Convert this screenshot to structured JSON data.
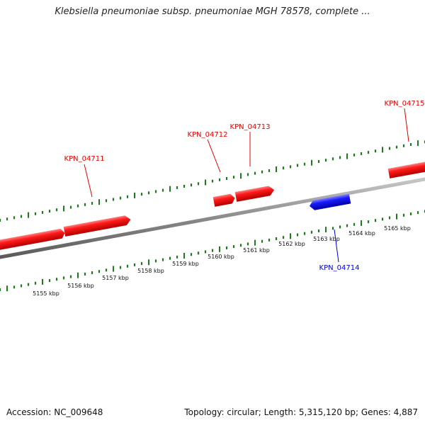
{
  "header": {
    "title": "Klebsiella pneumoniae subsp. pneumoniae MGH 78578, complete ..."
  },
  "footer": {
    "accession": "Accession: NC_009648",
    "topology": "Topology: circular; Length: 5,315,120 bp; Genes: 4,887"
  },
  "colors": {
    "forward_gene": "#ff1a1a",
    "reverse_gene": "#1a1aff",
    "backbone": "#8a8a8a",
    "ticks": "#1e7a1e",
    "background": "#ffffff"
  },
  "map": {
    "ruler_labels": [
      "5155 kbp",
      "5156 kbp",
      "5157 kbp",
      "5158 kbp",
      "5159 kbp",
      "5160 kbp",
      "5161 kbp",
      "5162 kbp",
      "5163 kbp",
      "5164 kbp",
      "5165 kbp"
    ],
    "genes": [
      {
        "name": "KPN_04711",
        "strand": "forward"
      },
      {
        "name": "KPN_04712",
        "strand": "forward"
      },
      {
        "name": "KPN_04713",
        "strand": "forward"
      },
      {
        "name": "KPN_04714",
        "strand": "reverse"
      },
      {
        "name": "KPN_04715",
        "strand": "forward"
      }
    ]
  }
}
